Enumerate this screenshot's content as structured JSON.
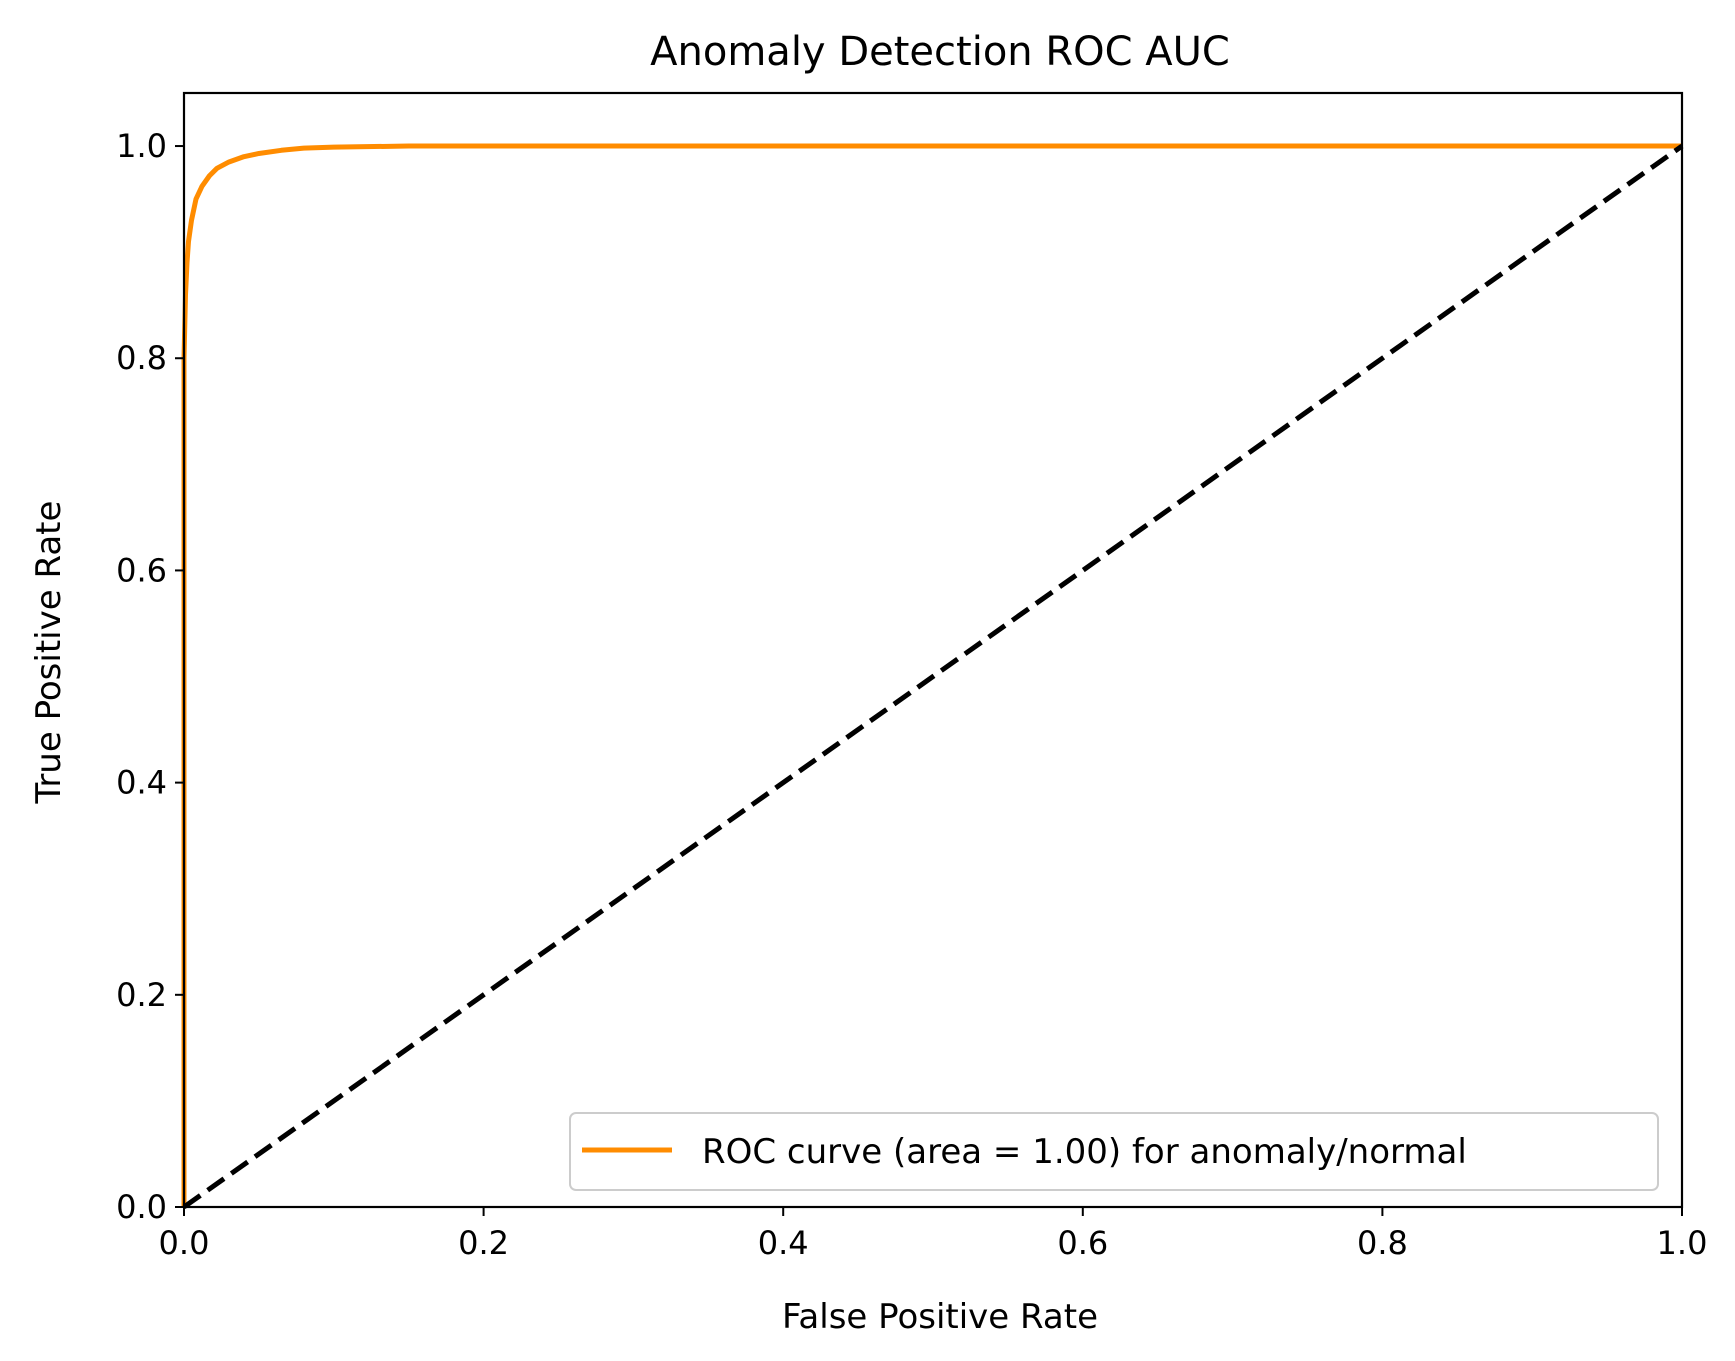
{
  "chart_data": {
    "type": "line",
    "title": "Anomaly Detection ROC AUC",
    "xlabel": "False Positive Rate",
    "ylabel": "True Positive Rate",
    "xlim": [
      0.0,
      1.0
    ],
    "ylim": [
      0.0,
      1.05
    ],
    "x_ticks": [
      "0.0",
      "0.2",
      "0.4",
      "0.6",
      "0.8",
      "1.0"
    ],
    "y_ticks": [
      "0.0",
      "0.2",
      "0.4",
      "0.6",
      "0.8",
      "1.0"
    ],
    "grid": false,
    "legend_position": "lower-right",
    "series": [
      {
        "name": "ROC curve (area = 1.00) for anomaly/normal",
        "color": "#ff8c00",
        "style": "solid",
        "x": [
          0.0,
          0.0,
          0.001,
          0.002,
          0.003,
          0.005,
          0.008,
          0.012,
          0.017,
          0.022,
          0.03,
          0.04,
          0.05,
          0.065,
          0.08,
          0.1,
          0.15,
          0.2,
          0.3,
          0.5,
          0.7,
          1.0
        ],
        "y": [
          0.0,
          0.8,
          0.86,
          0.89,
          0.91,
          0.93,
          0.95,
          0.962,
          0.972,
          0.979,
          0.985,
          0.99,
          0.993,
          0.996,
          0.998,
          0.999,
          1.0,
          1.0,
          1.0,
          1.0,
          1.0,
          1.0
        ]
      },
      {
        "color": "#000000",
        "style": "dashed",
        "x": [
          0.0,
          1.0
        ],
        "y": [
          0.0,
          1.0
        ]
      }
    ]
  }
}
